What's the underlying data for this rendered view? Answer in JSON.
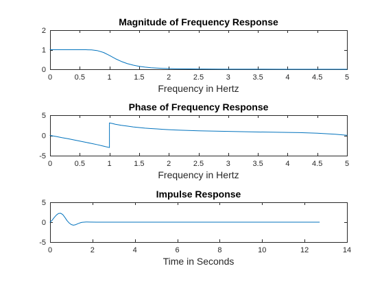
{
  "colors": {
    "series": "#0072BD",
    "axis": "#262626",
    "background": "#ffffff"
  },
  "chart_data": [
    {
      "type": "line",
      "title": "Magnitude of Frequency Response",
      "xlabel": "Frequency in Hertz",
      "ylabel": "",
      "xlim": [
        0,
        5
      ],
      "ylim": [
        0,
        2
      ],
      "xticks": [
        0,
        0.5,
        1,
        1.5,
        2,
        2.5,
        3,
        3.5,
        4,
        4.5,
        5
      ],
      "yticks": [
        0,
        1,
        2
      ],
      "xtick_labels": [
        "0",
        "0.5",
        "1",
        "1.5",
        "2",
        "2.5",
        "3",
        "3.5",
        "4",
        "4.5",
        "5"
      ],
      "ytick_labels": [
        "0",
        "1",
        "2"
      ],
      "grid": false,
      "series": [
        {
          "x": [
            0,
            0.1,
            0.2,
            0.3,
            0.4,
            0.5,
            0.6,
            0.7,
            0.8,
            0.9,
            1.0,
            1.1,
            1.2,
            1.3,
            1.4,
            1.5,
            1.6,
            1.7,
            1.8,
            1.9,
            2.0,
            2.2,
            2.5,
            3.0,
            3.5,
            4.0,
            4.5,
            5.0
          ],
          "y": [
            1.0,
            1.0,
            1.0,
            1.0,
            1.0,
            1.0,
            1.0,
            0.99,
            0.95,
            0.86,
            0.71,
            0.54,
            0.4,
            0.29,
            0.21,
            0.15,
            0.11,
            0.08,
            0.06,
            0.045,
            0.035,
            0.02,
            0.012,
            0.005,
            0.003,
            0.002,
            0.001,
            0.001
          ]
        }
      ]
    },
    {
      "type": "line",
      "title": "Phase of Frequency Response",
      "xlabel": "Frequency in Hertz",
      "ylabel": "",
      "xlim": [
        0,
        5
      ],
      "ylim": [
        -5,
        5
      ],
      "xticks": [
        0,
        0.5,
        1,
        1.5,
        2,
        2.5,
        3,
        3.5,
        4,
        4.5,
        5
      ],
      "yticks": [
        -5,
        0,
        5
      ],
      "xtick_labels": [
        "0",
        "0.5",
        "1",
        "1.5",
        "2",
        "2.5",
        "3",
        "3.5",
        "4",
        "4.5",
        "5"
      ],
      "ytick_labels": [
        "-5",
        "0",
        "5"
      ],
      "grid": false,
      "series": [
        {
          "x": [
            0,
            0.1,
            0.2,
            0.3,
            0.4,
            0.5,
            0.6,
            0.7,
            0.8,
            0.9,
            1.0,
            1.0,
            1.05,
            1.1,
            1.2,
            1.3,
            1.4,
            1.5,
            1.6,
            1.7,
            1.8,
            1.9,
            2.0,
            2.2,
            2.5,
            3.0,
            3.5,
            4.0,
            4.2,
            4.5,
            4.8,
            5.0
          ],
          "y": [
            0.0,
            -0.25,
            -0.55,
            -0.8,
            -1.1,
            -1.4,
            -1.7,
            -2.0,
            -2.3,
            -2.65,
            -3.0,
            3.1,
            2.95,
            2.75,
            2.5,
            2.3,
            2.1,
            1.95,
            1.8,
            1.7,
            1.6,
            1.5,
            1.42,
            1.3,
            1.15,
            1.0,
            0.85,
            0.75,
            0.7,
            0.55,
            0.3,
            0.05
          ]
        }
      ]
    },
    {
      "type": "line",
      "title": "Impulse Response",
      "xlabel": "Time in Seconds",
      "ylabel": "",
      "xlim": [
        0,
        14
      ],
      "ylim": [
        -5,
        5
      ],
      "xticks": [
        0,
        2,
        4,
        6,
        8,
        10,
        12,
        14
      ],
      "yticks": [
        -5,
        0,
        5
      ],
      "xtick_labels": [
        "0",
        "2",
        "4",
        "6",
        "8",
        "10",
        "12",
        "14"
      ],
      "ytick_labels": [
        "-5",
        "0",
        "5"
      ],
      "grid": false,
      "series": [
        {
          "x": [
            0,
            0.1,
            0.2,
            0.3,
            0.4,
            0.5,
            0.6,
            0.7,
            0.8,
            0.9,
            1.0,
            1.1,
            1.2,
            1.3,
            1.4,
            1.5,
            1.7,
            1.9,
            2.2,
            3.0,
            5.0,
            8.0,
            10.0,
            12.7
          ],
          "y": [
            0.0,
            0.5,
            1.2,
            1.8,
            2.2,
            2.25,
            1.9,
            1.2,
            0.4,
            -0.2,
            -0.6,
            -0.75,
            -0.65,
            -0.4,
            -0.2,
            -0.05,
            0.05,
            0.02,
            0.0,
            0.0,
            0.0,
            0.0,
            0.0,
            0.0
          ]
        }
      ]
    }
  ]
}
